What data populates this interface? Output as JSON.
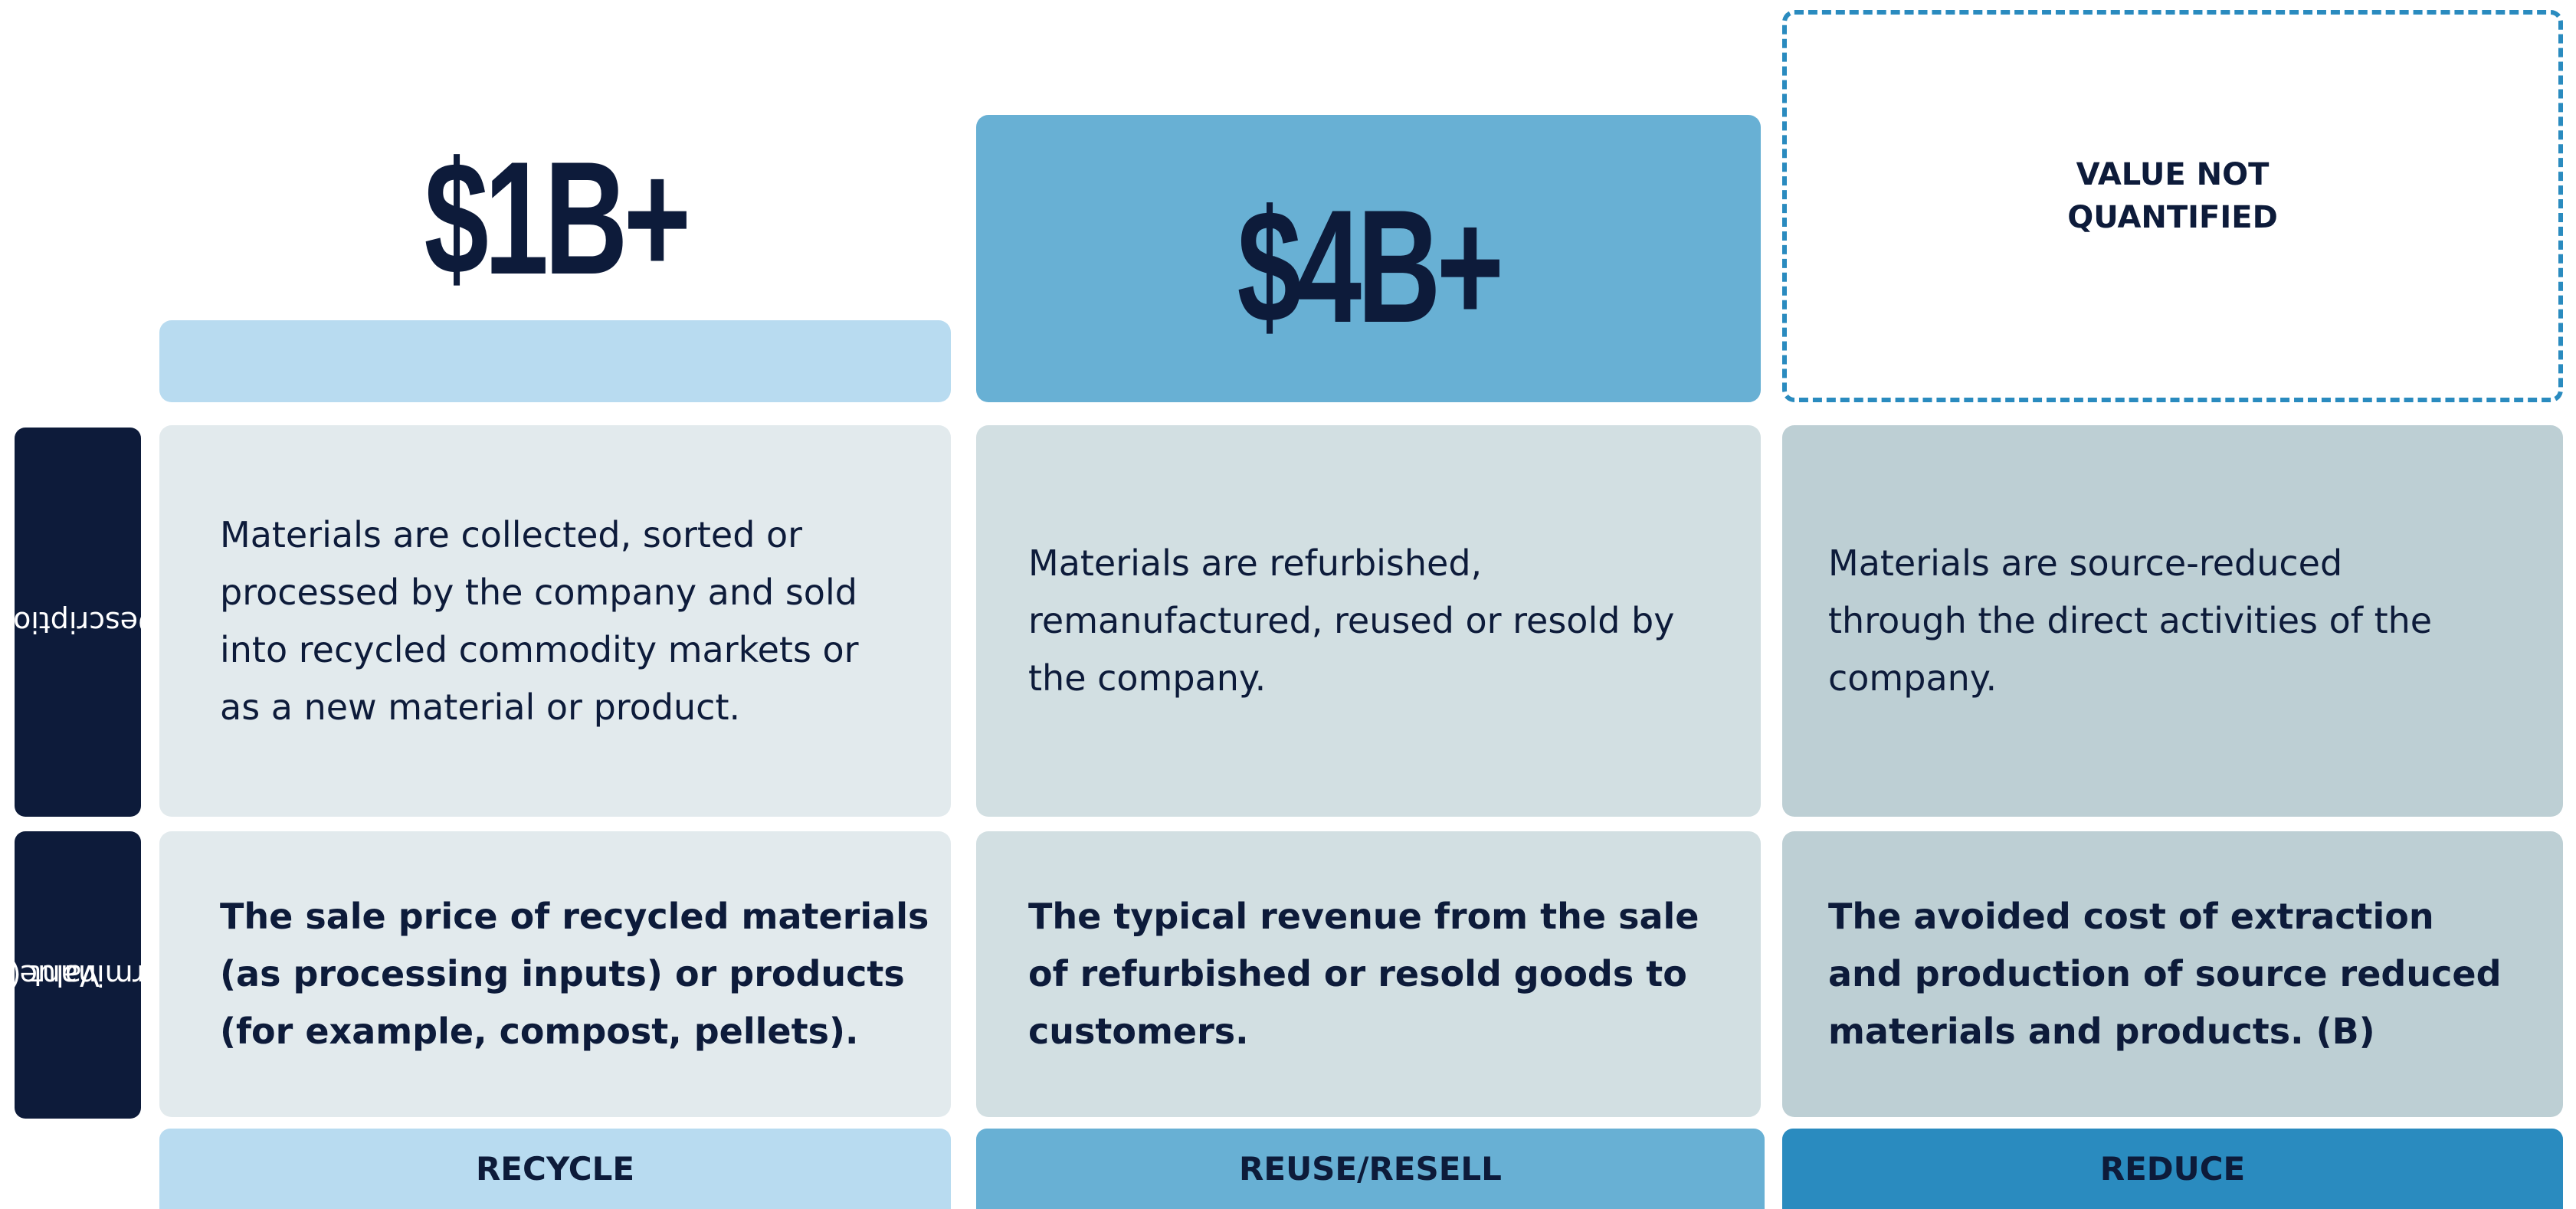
{
  "rows": {
    "description": "Description",
    "value_determinant": [
      "Value",
      "Determinant (A)"
    ]
  },
  "columns": [
    {
      "value": "$1B+",
      "description": [
        "Materials are collected, sorted or",
        "processed by the company and sold",
        "into recycled commodity markets or",
        "as a new material or product."
      ],
      "determinant": [
        "The sale price of recycled materials",
        "(as processing inputs) or products",
        "(for example, compost, pellets)."
      ],
      "label": "RECYCLE"
    },
    {
      "value": "$4B+",
      "description": [
        "Materials are refurbished,",
        "remanufactured, reused or resold by",
        "the company."
      ],
      "determinant": [
        "The typical revenue from the sale",
        "of refurbished or resold goods to",
        "customers."
      ],
      "label": "REUSE/RESELL"
    },
    {
      "value": [
        "VALUE NOT",
        "QUANTIFIED"
      ],
      "description": [
        "Materials are source-reduced",
        "through the direct activities of the",
        "company."
      ],
      "determinant": [
        "The avoided cost of extraction",
        "and production of source reduced",
        "materials and products. (B)"
      ],
      "label": "REDUCE"
    }
  ]
}
